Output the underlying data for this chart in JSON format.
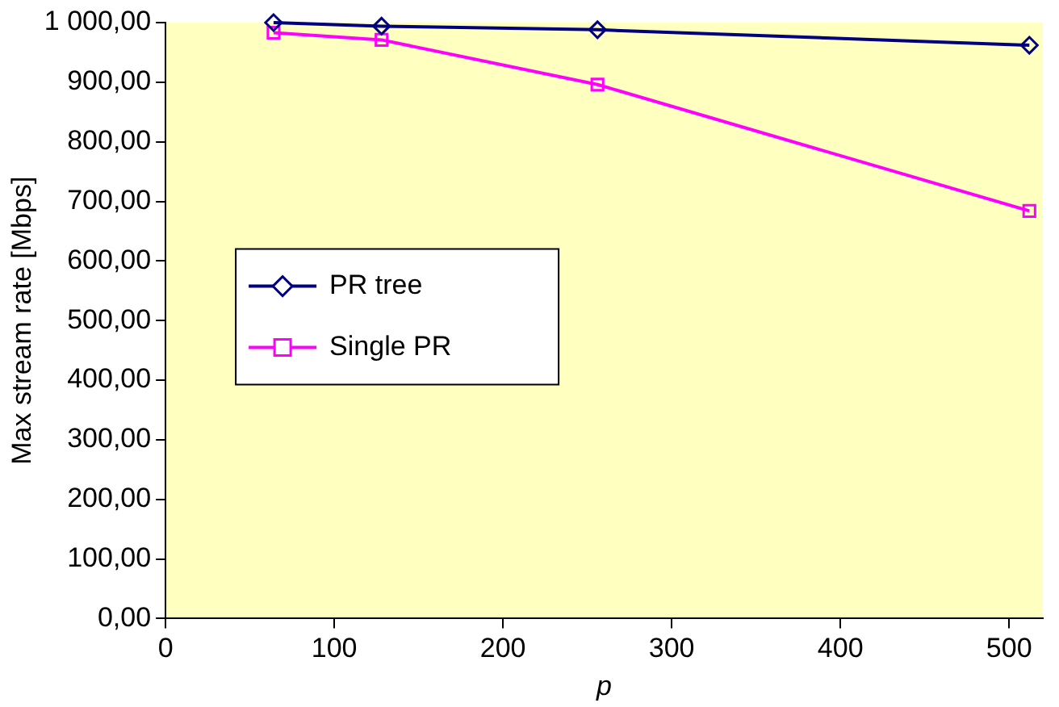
{
  "chart_data": {
    "type": "line",
    "xlabel": "p",
    "ylabel": "Max stream rate [Mbps]",
    "x": [
      64,
      128,
      256,
      512
    ],
    "series": [
      {
        "name": "PR tree",
        "color": "#000080",
        "marker": "diamond",
        "values": [
          1000,
          994,
          988,
          962
        ]
      },
      {
        "name": "Single PR",
        "color": "#ff00ff",
        "marker": "square",
        "values": [
          983,
          971,
          896,
          684
        ]
      }
    ],
    "xlim": [
      0,
      520
    ],
    "xticks": [
      0,
      100,
      200,
      300,
      400,
      500
    ],
    "ylim": [
      0,
      1000
    ],
    "yticks": [
      {
        "value": 0,
        "label": "0,00"
      },
      {
        "value": 100,
        "label": "100,00"
      },
      {
        "value": 200,
        "label": "200,00"
      },
      {
        "value": 300,
        "label": "300,00"
      },
      {
        "value": 400,
        "label": "400,00"
      },
      {
        "value": 500,
        "label": "500,00"
      },
      {
        "value": 600,
        "label": "600,00"
      },
      {
        "value": 700,
        "label": "700,00"
      },
      {
        "value": 800,
        "label": "800,00"
      },
      {
        "value": 900,
        "label": "900,00"
      },
      {
        "value": 1000,
        "label": "1 000,00"
      }
    ],
    "grid": false,
    "legend": "center left",
    "line_style": "solid"
  }
}
